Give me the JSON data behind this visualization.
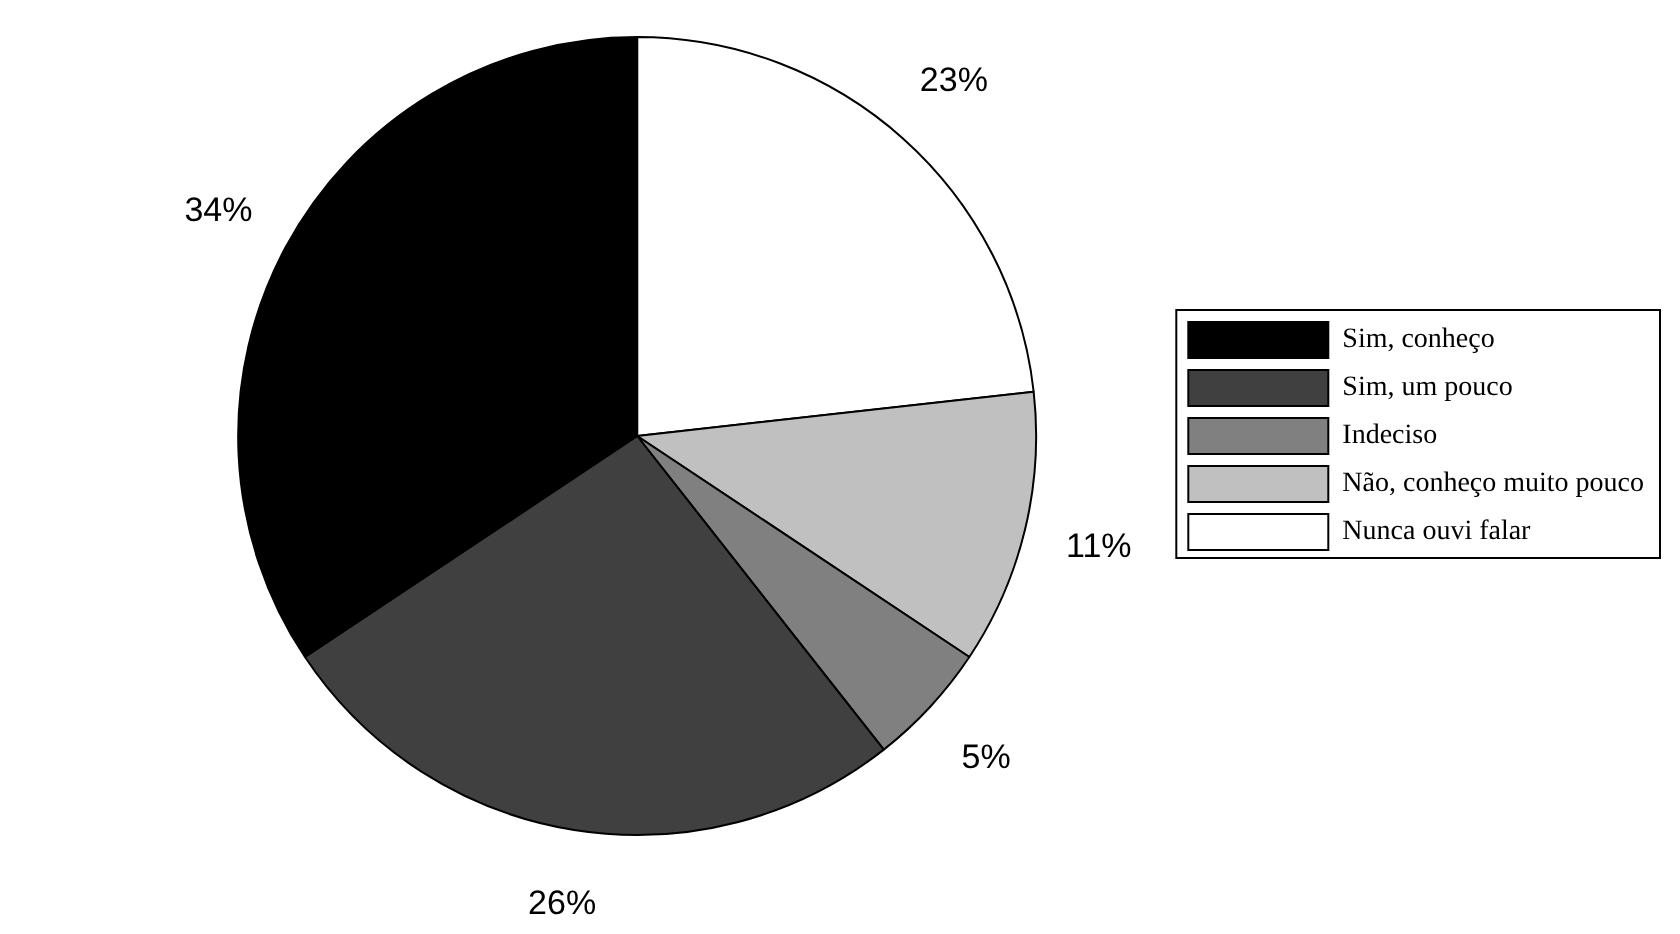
{
  "chart_data": {
    "type": "pie",
    "categories": [
      "Sim, conheço",
      "Sim, um pouco",
      "Indeciso",
      "Não, conheço muito pouco",
      "Nunca ouvi falar"
    ],
    "values": [
      34,
      26,
      5,
      11,
      23
    ],
    "colors": [
      "#000000",
      "#404040",
      "#808080",
      "#c0c0c0",
      "#ffffff"
    ],
    "value_labels": [
      "34%",
      "26%",
      "5%",
      "11%",
      "23%"
    ],
    "legend": "right"
  }
}
